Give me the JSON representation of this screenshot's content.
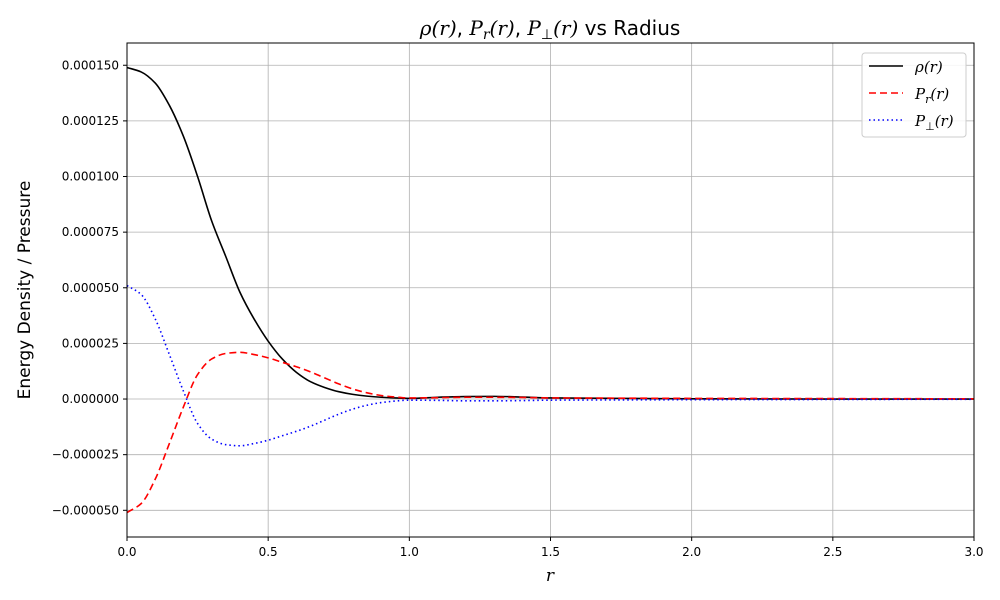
{
  "chart_data": {
    "type": "line",
    "title_parts": {
      "rho": "ρ(r)",
      "pr": "P",
      "pr_sub": "r",
      "pr_arg": "(r)",
      "pp": "P",
      "pp_sub": "⊥",
      "pp_arg": "(r)",
      "suffix": " vs Radius"
    },
    "xlabel": "r",
    "ylabel": "Energy Density / Pressure",
    "xlim": [
      0,
      3.0
    ],
    "ylim": [
      -6.2e-05,
      0.00016
    ],
    "xticks": [
      0,
      0.5,
      1.0,
      1.5,
      2.0,
      2.5,
      3.0
    ],
    "xtick_labels": [
      "0.0",
      "0.5",
      "1.0",
      "1.5",
      "2.0",
      "2.5",
      "3.0"
    ],
    "yticks": [
      -5e-05,
      -2.5e-05,
      0,
      2.5e-05,
      5e-05,
      7.5e-05,
      0.0001,
      0.000125,
      0.00015
    ],
    "ytick_labels": [
      "−0.000050",
      "−0.000025",
      "0.000000",
      "0.000025",
      "0.000050",
      "0.000075",
      "0.000100",
      "0.000125",
      "0.000150"
    ],
    "grid": true,
    "legend_position": "top-right",
    "series": [
      {
        "name": "ρ(r)",
        "legend": {
          "main": "ρ(r)",
          "sub": ""
        },
        "color": "#000000",
        "dash": "",
        "x": [
          0,
          0.05,
          0.1,
          0.15,
          0.2,
          0.25,
          0.3,
          0.35,
          0.4,
          0.45,
          0.5,
          0.55,
          0.6,
          0.65,
          0.7,
          0.75,
          0.8,
          0.85,
          0.9,
          0.95,
          1.0,
          1.1,
          1.2,
          1.3,
          1.4,
          1.5,
          1.75,
          2.0,
          2.5,
          3.0
        ],
        "y": [
          0.000149,
          0.000147,
          0.000142,
          0.000132,
          0.000118,
          0.0001,
          8e-05,
          6.4e-05,
          4.8e-05,
          3.6e-05,
          2.6e-05,
          1.8e-05,
          1.2e-05,
          7.8e-06,
          5.2e-06,
          3.3e-06,
          2.1e-06,
          1.3e-06,
          8e-07,
          5e-07,
          3e-07,
          8e-07,
          1.1e-06,
          1.2e-06,
          9e-07,
          5e-07,
          3e-07,
          1e-07,
          0.0,
          0.0
        ]
      },
      {
        "name": "P_r(r)",
        "legend": {
          "main": "P",
          "sub": "r"
        },
        "color": "#ff0000",
        "dash": "7,4",
        "x": [
          0,
          0.05,
          0.1,
          0.15,
          0.2,
          0.25,
          0.3,
          0.35,
          0.4,
          0.45,
          0.5,
          0.55,
          0.6,
          0.65,
          0.7,
          0.75,
          0.8,
          0.85,
          0.9,
          0.95,
          1.0,
          1.1,
          1.2,
          1.3,
          1.4,
          1.5,
          1.75,
          2.0,
          2.5,
          3.0
        ],
        "y": [
          -5.1e-05,
          -4.7e-05,
          -3.6e-05,
          -2e-05,
          -3.5e-06,
          1.1e-05,
          1.8e-05,
          2.05e-05,
          2.1e-05,
          2e-05,
          1.85e-05,
          1.65e-05,
          1.45e-05,
          1.22e-05,
          9.5e-06,
          6.8e-06,
          4.5e-06,
          2.8e-06,
          1.6e-06,
          9e-07,
          5e-07,
          6e-07,
          8e-07,
          8e-07,
          7e-07,
          5e-07,
          4e-07,
          3e-07,
          2e-07,
          1e-07
        ]
      },
      {
        "name": "P_⊥(r)",
        "legend": {
          "main": "P",
          "sub": "⊥"
        },
        "color": "#0000ff",
        "dash": "1.5,3",
        "x": [
          0,
          0.05,
          0.1,
          0.15,
          0.2,
          0.25,
          0.3,
          0.35,
          0.4,
          0.45,
          0.5,
          0.55,
          0.6,
          0.65,
          0.7,
          0.75,
          0.8,
          0.85,
          0.9,
          0.95,
          1.0,
          1.1,
          1.2,
          1.3,
          1.4,
          1.5,
          1.75,
          2.0,
          2.5,
          3.0
        ],
        "y": [
          5.1e-05,
          4.7e-05,
          3.6e-05,
          2e-05,
          3.5e-06,
          -1.1e-05,
          -1.8e-05,
          -2.05e-05,
          -2.1e-05,
          -2e-05,
          -1.85e-05,
          -1.65e-05,
          -1.45e-05,
          -1.22e-05,
          -9.5e-06,
          -6.8e-06,
          -4.5e-06,
          -2.8e-06,
          -1.6e-06,
          -9e-07,
          -5e-07,
          -6e-07,
          -8e-07,
          -8e-07,
          -7e-07,
          -5e-07,
          -4e-07,
          -3e-07,
          -2e-07,
          -1e-07
        ]
      }
    ]
  }
}
